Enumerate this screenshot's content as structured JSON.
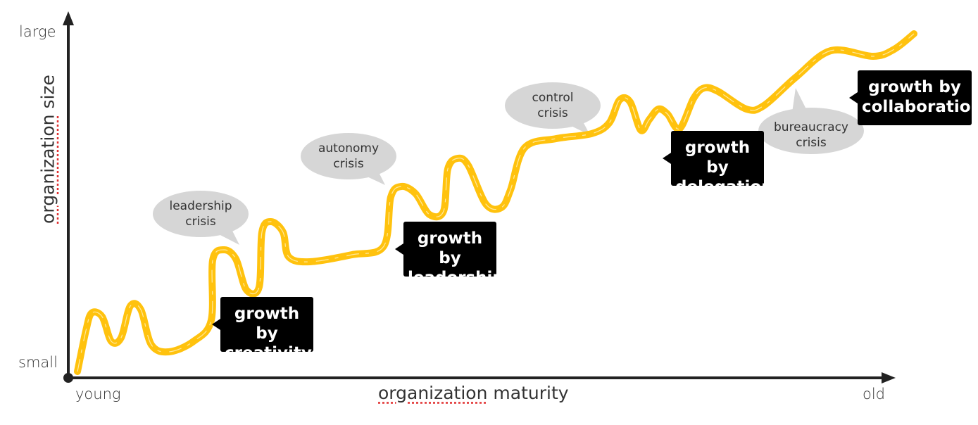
{
  "axes": {
    "y_title_word1": "organization",
    "y_title_word2": "size",
    "y_top": "large",
    "y_bottom": "small",
    "x_title_word1": "organization",
    "x_title_word2": "maturity",
    "x_left": "young",
    "x_right": "old"
  },
  "curve_color": "#FFC20E",
  "phases": [
    {
      "line1": "growth by",
      "line2": "creativity"
    },
    {
      "line1": "growth by",
      "line2": "leadership"
    },
    {
      "line1": "growth by",
      "line2": "delegation"
    },
    {
      "line1": "growth by",
      "line2": "collaboration"
    }
  ],
  "crises": [
    {
      "line1": "leadership",
      "line2": "crisis"
    },
    {
      "line1": "autonomy",
      "line2": "crisis"
    },
    {
      "line1": "control",
      "line2": "crisis"
    },
    {
      "line1": "bureaucracy",
      "line2": "crisis"
    }
  ]
}
